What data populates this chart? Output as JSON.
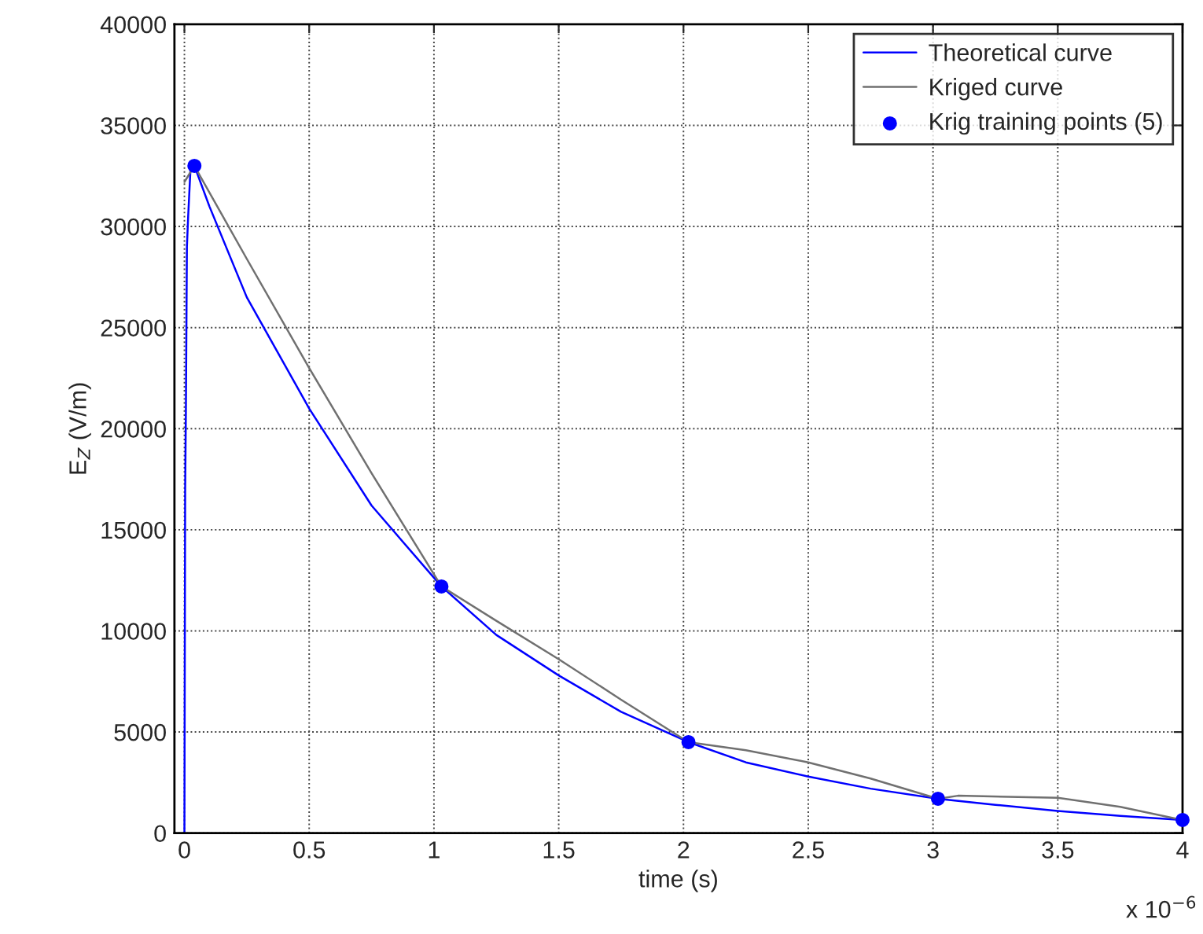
{
  "chart_data": {
    "type": "line",
    "xlabel": "time (s)",
    "ylabel": "E$_{Z}$ (V/m)",
    "annotations": [
      "x 10$^{−6}$"
    ],
    "xlim": [
      -0.04,
      4
    ],
    "xticks": [
      0,
      0.5,
      1,
      1.5,
      2,
      2.5,
      3,
      3.5,
      4
    ],
    "ylim": [
      0,
      40000
    ],
    "yticks": [
      0,
      5000,
      10000,
      15000,
      20000,
      25000,
      30000,
      35000,
      40000
    ],
    "grid": true,
    "legend": "top right",
    "series": [
      {
        "name": "Theoretical curve",
        "type": "line",
        "color": "#0000ff",
        "marker": "none",
        "line_style": "solid",
        "x": [
          0,
          0.003,
          0.006,
          0.01,
          0.015,
          0.025,
          0.04,
          0.1,
          0.25,
          0.5,
          0.75,
          1.03,
          1.25,
          1.5,
          1.75,
          2.02,
          2.25,
          2.5,
          2.75,
          3.02,
          3.25,
          3.5,
          3.75,
          4
        ],
        "values": [
          0,
          17000,
          21000,
          29000,
          30500,
          33000,
          33000,
          31000,
          26500,
          21000,
          16200,
          12200,
          9800,
          7800,
          6000,
          4500,
          3500,
          2800,
          2200,
          1700,
          1400,
          1100,
          850,
          650
        ]
      },
      {
        "name": "Kriged curve",
        "type": "line",
        "color": "#707070",
        "marker": "none",
        "line_style": "solid",
        "x": [
          0,
          0.04,
          0.25,
          0.5,
          0.75,
          1.03,
          1.25,
          1.5,
          1.75,
          2.02,
          2.25,
          2.5,
          2.75,
          3.02,
          3.1,
          3.5,
          3.75,
          4
        ],
        "values": [
          32200,
          33000,
          28400,
          23000,
          17800,
          12200,
          10500,
          8600,
          6600,
          4500,
          4100,
          3500,
          2700,
          1700,
          1850,
          1750,
          1300,
          650
        ]
      },
      {
        "name": "Krig training points (5)",
        "type": "scatter",
        "color": "#0000ff",
        "marker": "circle",
        "x": [
          0.04,
          1.03,
          2.02,
          3.02,
          4
        ],
        "values": [
          33000,
          12200,
          4500,
          1700,
          650
        ]
      }
    ]
  }
}
